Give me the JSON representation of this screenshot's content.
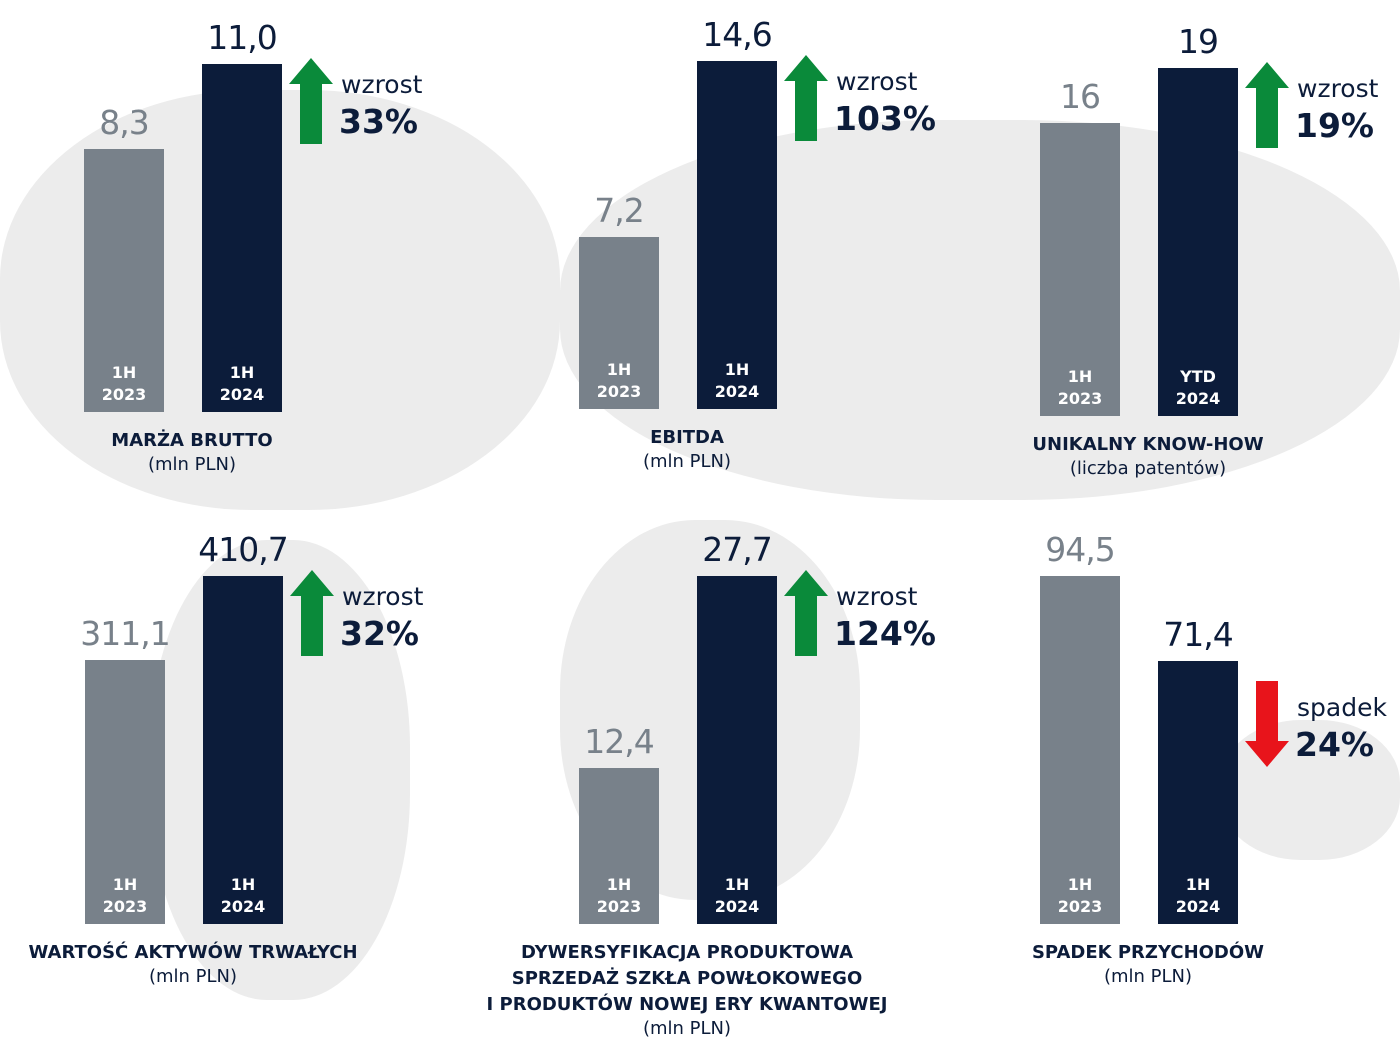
{
  "chart_data": [
    {
      "type": "bar",
      "title": "MARŻA BRUTTO",
      "subtitle": "(mln PLN)",
      "categories": [
        "1H\n2023",
        "1H\n2024"
      ],
      "values": [
        8.3,
        11.0
      ],
      "value_labels": [
        "8,3",
        "11,0"
      ],
      "colors": [
        "#78818a",
        "#0c1c3a"
      ],
      "change_text": "wzrost",
      "change": "33%",
      "direction": "up"
    },
    {
      "type": "bar",
      "title": "EBITDA",
      "subtitle": "(mln PLN)",
      "categories": [
        "1H\n2023",
        "1H\n2024"
      ],
      "values": [
        7.2,
        14.6
      ],
      "value_labels": [
        "7,2",
        "14,6"
      ],
      "colors": [
        "#78818a",
        "#0c1c3a"
      ],
      "change_text": "wzrost",
      "change": "103%",
      "direction": "up"
    },
    {
      "type": "bar",
      "title": "UNIKALNY KNOW-HOW",
      "subtitle": "(liczba patentów)",
      "categories": [
        "1H\n2023",
        "YTD\n2024"
      ],
      "values": [
        16,
        19
      ],
      "colors": [
        "#78818a",
        "#0c1c3a"
      ],
      "change_text": "wzrost",
      "change": "19%",
      "direction": "up"
    },
    {
      "type": "bar",
      "title": "WARTOŚĆ AKTYWÓW TRWAŁYCH",
      "subtitle": "(mln PLN)",
      "categories": [
        "1H\n2023",
        "1H\n2024"
      ],
      "values": [
        311.1,
        410.7
      ],
      "value_labels": [
        "311,1",
        "410,7"
      ],
      "colors": [
        "#78818a",
        "#0c1c3a"
      ],
      "change_text": "wzrost",
      "change": "32%",
      "direction": "up"
    },
    {
      "type": "bar",
      "title": "DYWERSYFIKACJA PRODUKTOWA\nSPRZEDAŻ SZKŁA POWŁOKOWEGO\nI PRODUKTÓW NOWEJ ERY KWANTOWEJ",
      "subtitle": "(mln PLN)",
      "categories": [
        "1H\n2023",
        "1H\n2024"
      ],
      "values": [
        12.4,
        27.7
      ],
      "value_labels": [
        "12,4",
        "27,7"
      ],
      "colors": [
        "#78818a",
        "#0c1c3a"
      ],
      "change_text": "wzrost",
      "change": "124%",
      "direction": "up"
    },
    {
      "type": "bar",
      "title": "SPADEK PRZYCHODÓW",
      "subtitle": "(mln PLN)",
      "categories": [
        "1H\n2023",
        "1H\n2024"
      ],
      "values": [
        94.5,
        71.4
      ],
      "value_labels": [
        "94,5",
        "71,4"
      ],
      "colors": [
        "#78818a",
        "#0c1c3a"
      ],
      "change_text": "spadek",
      "change": "24%",
      "direction": "down"
    }
  ]
}
